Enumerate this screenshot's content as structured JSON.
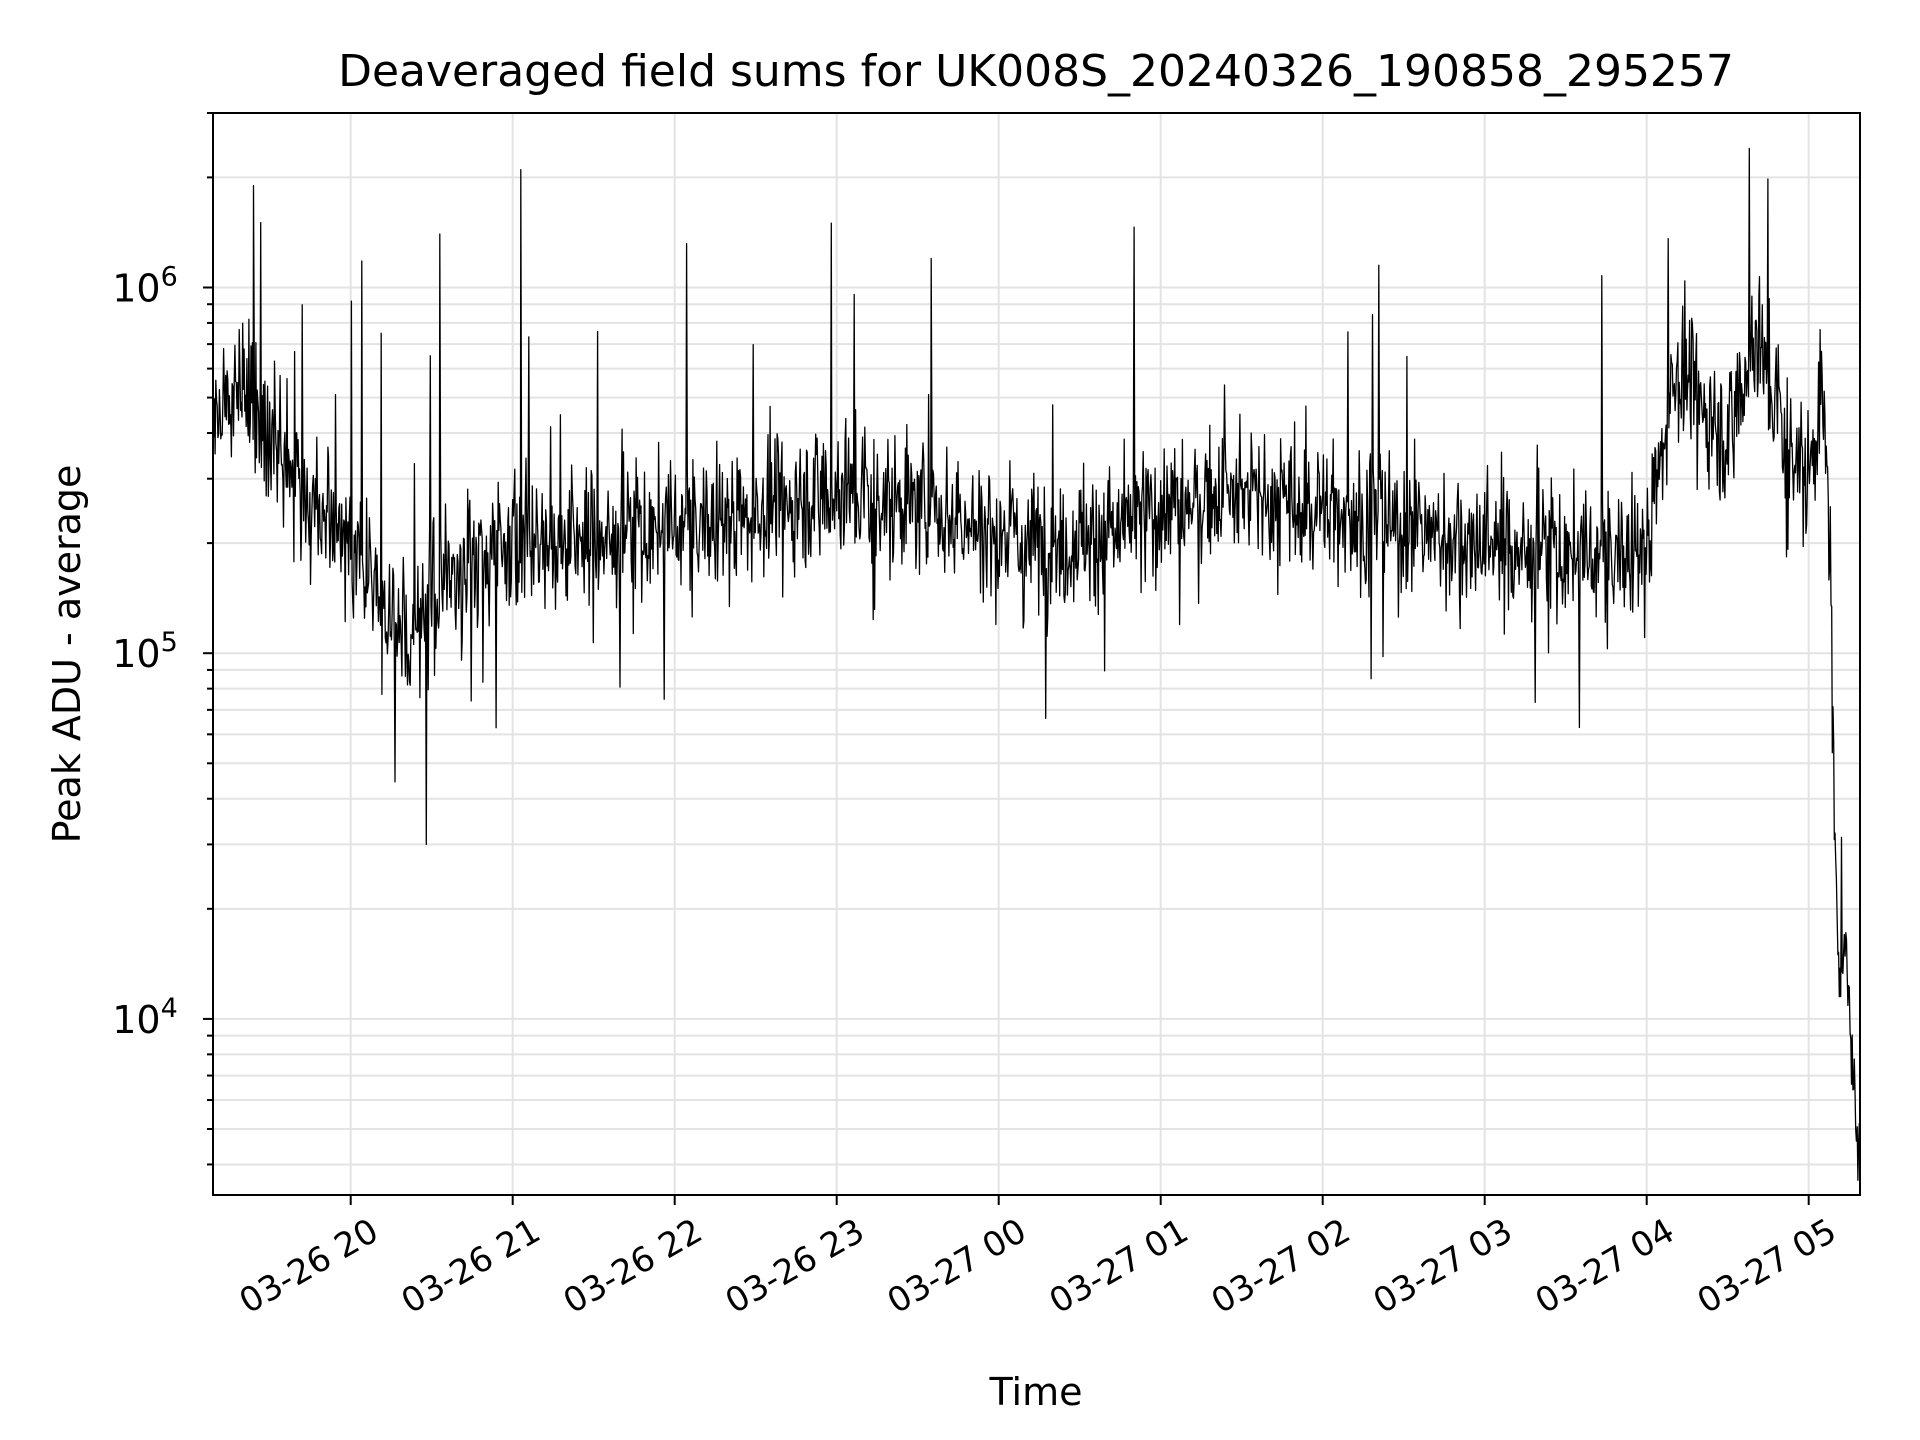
{
  "chart_data": {
    "type": "line",
    "title": "Deaveraged field sums for UK008S_20240326_190858_295257",
    "xlabel": "Time",
    "ylabel": "Peak ADU - average",
    "yscale": "log",
    "grid": true,
    "legend": "none",
    "line_color": "#000000",
    "grid_color": "#e3e3e3",
    "xlim": [
      "2024-03-26 19:09",
      "2024-03-27 05:19"
    ],
    "ylim": [
      3300,
      3000000
    ],
    "x_ticks": [
      {
        "t": "2024-03-26 20:00",
        "label": "03-26 20"
      },
      {
        "t": "2024-03-26 21:00",
        "label": "03-26 21"
      },
      {
        "t": "2024-03-26 22:00",
        "label": "03-26 22"
      },
      {
        "t": "2024-03-26 23:00",
        "label": "03-26 23"
      },
      {
        "t": "2024-03-27 00:00",
        "label": "03-27 00"
      },
      {
        "t": "2024-03-27 01:00",
        "label": "03-27 01"
      },
      {
        "t": "2024-03-27 02:00",
        "label": "03-27 02"
      },
      {
        "t": "2024-03-27 03:00",
        "label": "03-27 03"
      },
      {
        "t": "2024-03-27 04:00",
        "label": "03-27 04"
      },
      {
        "t": "2024-03-27 05:00",
        "label": "03-27 05"
      }
    ],
    "y_ticks": [
      {
        "value": 10000,
        "base": "10",
        "exp": "4"
      },
      {
        "value": 100000,
        "base": "10",
        "exp": "5"
      },
      {
        "value": 1000000,
        "base": "10",
        "exp": "6"
      }
    ],
    "x": [
      "2024-03-26 19:09",
      "2024-03-26 19:20",
      "2024-03-26 19:30",
      "2024-03-26 19:40",
      "2024-03-26 19:50",
      "2024-03-26 20:00",
      "2024-03-26 20:10",
      "2024-03-26 20:20",
      "2024-03-26 20:30",
      "2024-03-26 20:40",
      "2024-03-26 20:50",
      "2024-03-26 21:00",
      "2024-03-26 21:20",
      "2024-03-26 21:40",
      "2024-03-26 22:00",
      "2024-03-26 22:20",
      "2024-03-26 22:40",
      "2024-03-26 23:00",
      "2024-03-26 23:20",
      "2024-03-26 23:40",
      "2024-03-27 00:00",
      "2024-03-27 00:20",
      "2024-03-27 00:40",
      "2024-03-27 01:00",
      "2024-03-27 01:20",
      "2024-03-27 01:40",
      "2024-03-27 02:00",
      "2024-03-27 02:20",
      "2024-03-27 02:40",
      "2024-03-27 03:00",
      "2024-03-27 03:20",
      "2024-03-27 03:40",
      "2024-03-27 04:00",
      "2024-03-27 04:10",
      "2024-03-27 04:20",
      "2024-03-27 04:30",
      "2024-03-27 04:40",
      "2024-03-27 04:50",
      "2024-03-27 05:00",
      "2024-03-27 05:05",
      "2024-03-27 05:08",
      "2024-03-27 05:10",
      "2024-03-27 05:14",
      "2024-03-27 05:19"
    ],
    "y": [
      450000,
      550000,
      420000,
      280000,
      230000,
      200000,
      150000,
      110000,
      140000,
      170000,
      190000,
      210000,
      200000,
      210000,
      220000,
      230000,
      260000,
      280000,
      260000,
      240000,
      210000,
      200000,
      210000,
      250000,
      270000,
      260000,
      250000,
      230000,
      210000,
      200000,
      190000,
      180000,
      190000,
      600000,
      500000,
      380000,
      750000,
      420000,
      300000,
      500000,
      200000,
      18000,
      13000,
      4400
    ]
  }
}
